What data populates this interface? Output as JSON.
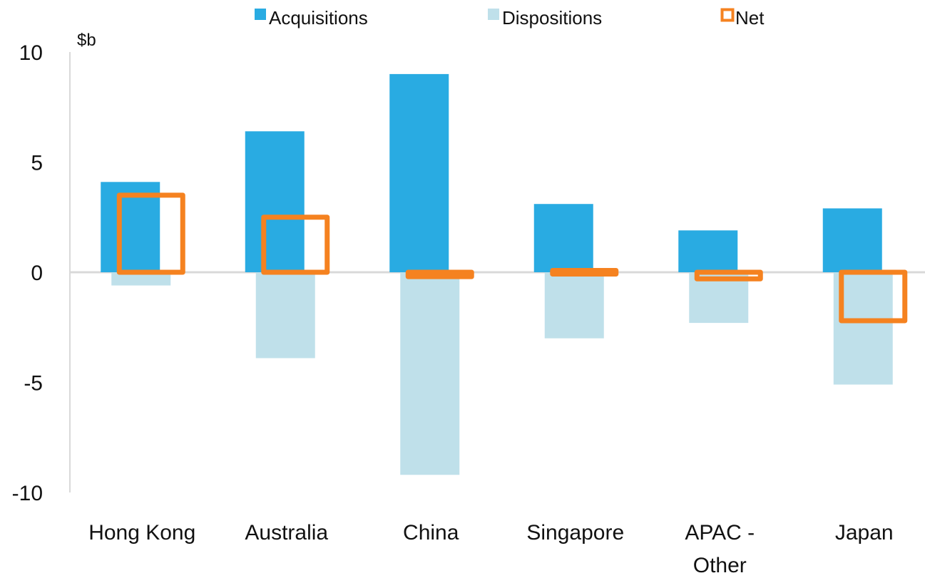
{
  "chart_data": {
    "type": "bar",
    "unit_label": "$b",
    "categories": [
      [
        "Hong Kong"
      ],
      [
        "Australia"
      ],
      [
        "China"
      ],
      [
        "Singapore"
      ],
      [
        "APAC -",
        "Other"
      ],
      [
        "Japan"
      ]
    ],
    "series": [
      {
        "name": "Acquisitions",
        "kind": "bar",
        "color": "#29ABE2",
        "values": [
          4.1,
          6.4,
          9.0,
          3.1,
          1.9,
          2.9
        ]
      },
      {
        "name": "Dispositions",
        "kind": "bar",
        "color": "#BFE0EA",
        "values": [
          -0.6,
          -3.9,
          -9.2,
          -3.0,
          -2.3,
          -5.1
        ]
      },
      {
        "name": "Net",
        "kind": "outline-bar",
        "color": "#F58220",
        "values": [
          3.5,
          2.5,
          -0.2,
          0.0,
          -0.3,
          -2.2
        ]
      }
    ],
    "ylim": [
      -10,
      10
    ],
    "yticks": [
      10,
      5,
      0,
      -5,
      -10
    ],
    "legend_position": "top",
    "grid": false
  }
}
